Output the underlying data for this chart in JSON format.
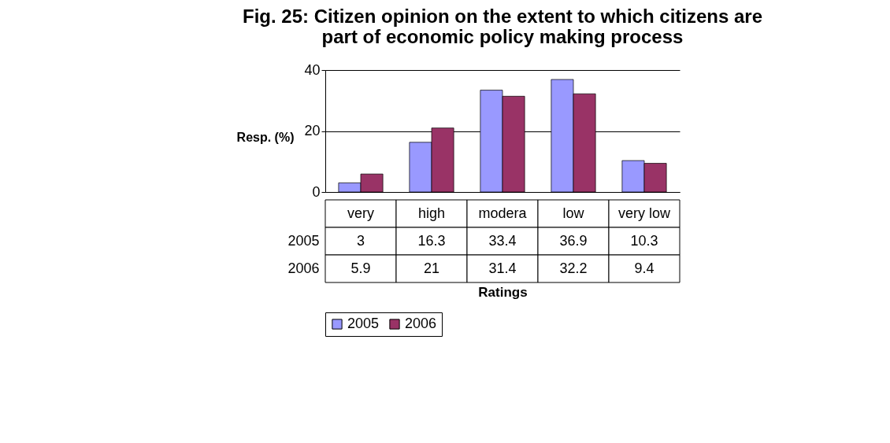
{
  "chart_data": {
    "type": "bar",
    "title": "Fig. 25: Citizen opinion on the extent to which citizens are part of economic policy making process",
    "xlabel": "Ratings",
    "ylabel": "Resp. (%)",
    "categories": [
      "very",
      "high",
      "modera",
      "low",
      "very low"
    ],
    "series": [
      {
        "name": "2005",
        "color": "#9999ff",
        "values": [
          3,
          16.3,
          33.4,
          36.9,
          10.3
        ]
      },
      {
        "name": "2006",
        "color": "#993366",
        "values": [
          5.9,
          21,
          31.4,
          32.2,
          9.4
        ]
      }
    ],
    "ylim": [
      0,
      40
    ],
    "yticks": [
      0,
      20,
      40
    ],
    "grid": "y",
    "legend": "bottom",
    "data_labels": true
  }
}
